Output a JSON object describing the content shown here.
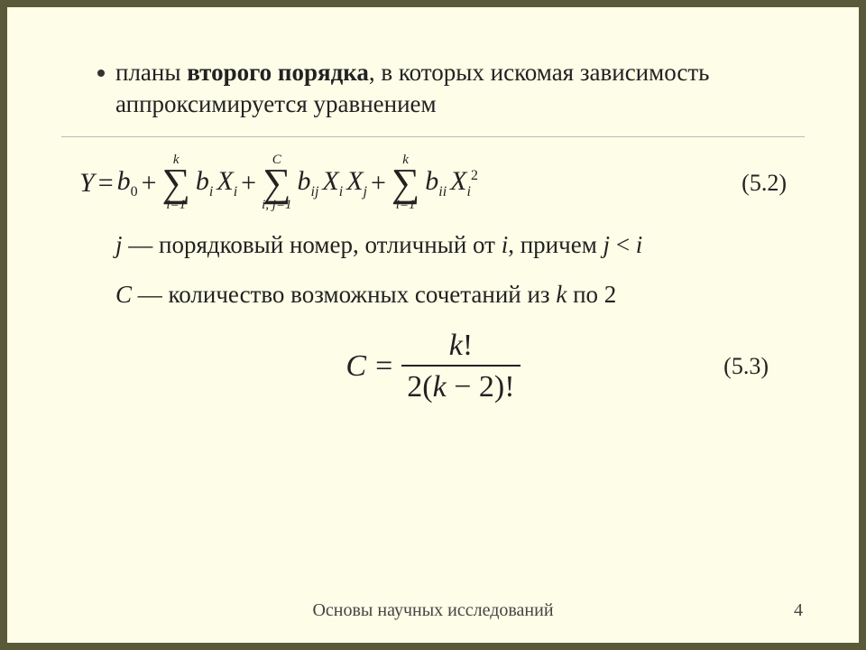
{
  "bullet": {
    "pre": "планы ",
    "bold": "второго порядка",
    "post": ", в которых искомая зависимость аппроксимируется уравнением"
  },
  "eq1": {
    "Y": "Y",
    "eq": "=",
    "b0": "b",
    "sub0": "0",
    "plus": "+",
    "sum1_top": "k",
    "sum1_bot": "i=1",
    "bi": "b",
    "sub_i": "i",
    "Xi": "X",
    "sum2_top": "C",
    "sum2_bot": "i, j=1",
    "bij": "b",
    "sub_ij": "ij",
    "Xj": "X",
    "sub_j": "j",
    "sum3_top": "k",
    "sum3_bot": "i=1",
    "bii": "b",
    "sub_ii": "ii",
    "sq": "2",
    "label": "(5.2)"
  },
  "desc1": {
    "j": "j",
    "t1": " — порядковый номер, отличный от ",
    "i": "i",
    "t2": ", причем ",
    "jlt": "j",
    "lt": " < ",
    "i2": "i"
  },
  "desc2": {
    "C": "C",
    "t1": " — количество возможных сочетаний из ",
    "k": "k",
    "t2": " по 2"
  },
  "eq2": {
    "C": "C",
    "eq": "=",
    "num_k": "k",
    "num_excl": "!",
    "den_2": "2",
    "den_open": "(",
    "den_k": "k",
    "den_minus": " − ",
    "den_two": "2",
    "den_close": ")",
    "den_excl": "!",
    "label": "(5.3)"
  },
  "footer": "Основы научных исследований",
  "page": "4"
}
